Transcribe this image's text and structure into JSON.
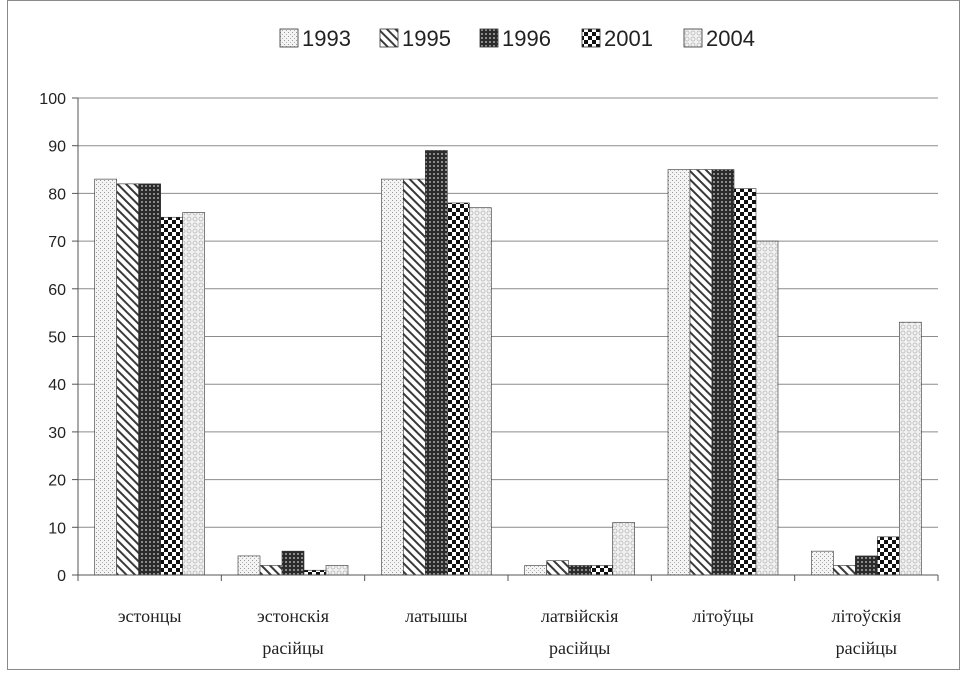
{
  "chart_data": {
    "type": "bar",
    "categories": [
      [
        "эстонцы"
      ],
      [
        "эстонскія",
        "расійцы"
      ],
      [
        "латышы"
      ],
      [
        "латвійскія",
        "расійцы"
      ],
      [
        "літоўцы"
      ],
      [
        "літоўскія",
        "расійцы"
      ]
    ],
    "series": [
      {
        "name": "1993",
        "pattern": "dots-light",
        "values": [
          83,
          4,
          83,
          2,
          85,
          5
        ]
      },
      {
        "name": "1995",
        "pattern": "diagonal",
        "values": [
          82,
          2,
          83,
          3,
          85,
          2
        ]
      },
      {
        "name": "1996",
        "pattern": "dark-grid",
        "values": [
          82,
          5,
          89,
          2,
          85,
          4
        ]
      },
      {
        "name": "2001",
        "pattern": "checker",
        "values": [
          75,
          1,
          78,
          2,
          81,
          8
        ]
      },
      {
        "name": "2004",
        "pattern": "circles",
        "values": [
          76,
          2,
          77,
          11,
          70,
          53
        ]
      }
    ],
    "ylim": [
      0,
      100
    ],
    "yticks": [
      0,
      10,
      20,
      30,
      40,
      50,
      60,
      70,
      80,
      90,
      100
    ],
    "grid": true,
    "legend": "top-center",
    "title": "",
    "xlabel": "",
    "ylabel": ""
  },
  "colors": {
    "grid": "#8c8c8c",
    "axis": "#555555",
    "bar_stroke": "#333333"
  }
}
